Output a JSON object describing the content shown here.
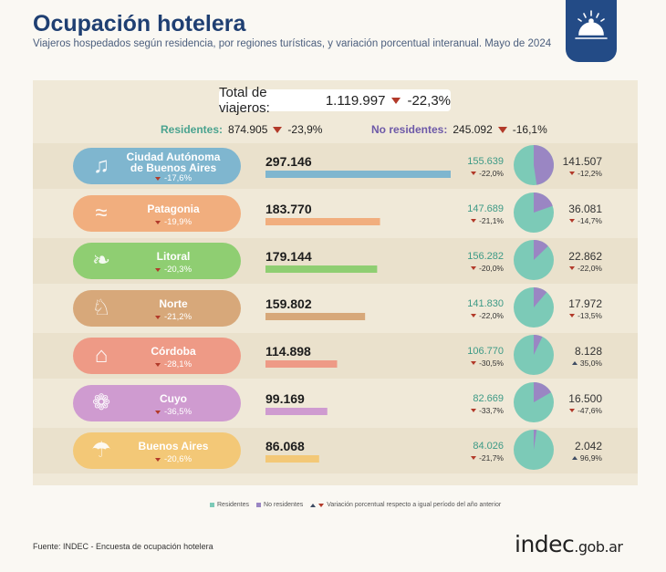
{
  "header": {
    "title": "Ocupación hotelera",
    "subtitle": "Viajeros hospedados según residencia, por regiones turísticas, y variación porcentual interanual. Mayo de 2024"
  },
  "summary": {
    "total_label": "Total de viajeros:",
    "total_value": "1.119.997",
    "total_var": "-22,3%",
    "res_label": "Residentes:",
    "res_value": "874.905",
    "res_var": "-23,9%",
    "nres_label": "No residentes:",
    "nres_value": "245.092",
    "nres_var": "-16,1%"
  },
  "colors": {
    "residentes": "#7ccab7",
    "no_residentes": "#9a86c3",
    "panel": "#f0e9d8",
    "down": "#b23a2a",
    "title": "#1f3f72"
  },
  "chart_data": {
    "type": "bar",
    "categories": [
      "Ciudad Autónoma de Buenos Aires",
      "Patagonia",
      "Litoral",
      "Norte",
      "Córdoba",
      "Cuyo",
      "Buenos Aires"
    ],
    "rows": [
      {
        "name_line1": "Ciudad Autónoma",
        "name_line2": "de Buenos Aires",
        "icon": "tango-icon",
        "color": "#7fb6cf",
        "band": "#eae1cc",
        "total": 297146,
        "total_label": "297.146",
        "total_var": "-17,6%",
        "res": 155639,
        "res_label": "155.639",
        "res_var": "-22,0%",
        "nres": 141507,
        "nres_label": "141.507",
        "nres_var": "-12,2%",
        "nres_up": false
      },
      {
        "name_line1": "Patagonia",
        "name_line2": "",
        "icon": "whale-icon",
        "color": "#f1ae7e",
        "band": "#f0e9d8",
        "total": 183770,
        "total_label": "183.770",
        "total_var": "-19,9%",
        "res": 147689,
        "res_label": "147.689",
        "res_var": "-21,1%",
        "nres": 36081,
        "nres_label": "36.081",
        "nres_var": "-14,7%",
        "nres_up": false
      },
      {
        "name_line1": "Litoral",
        "name_line2": "",
        "icon": "toucan-icon",
        "color": "#8fce72",
        "band": "#eae1cc",
        "total": 179144,
        "total_label": "179.144",
        "total_var": "-20,3%",
        "res": 156282,
        "res_label": "156.282",
        "res_var": "-20,0%",
        "nres": 22862,
        "nres_label": "22.862",
        "nres_var": "-22,0%",
        "nres_up": false
      },
      {
        "name_line1": "Norte",
        "name_line2": "",
        "icon": "llama-icon",
        "color": "#d7a87a",
        "band": "#f0e9d8",
        "total": 159802,
        "total_label": "159.802",
        "total_var": "-21,2%",
        "res": 141830,
        "res_label": "141.830",
        "res_var": "-22,0%",
        "nres": 17972,
        "nres_label": "17.972",
        "nres_var": "-13,5%",
        "nres_up": false
      },
      {
        "name_line1": "Córdoba",
        "name_line2": "",
        "icon": "cuckoo-clock-icon",
        "color": "#ee9a86",
        "band": "#eae1cc",
        "total": 114898,
        "total_label": "114.898",
        "total_var": "-28,1%",
        "res": 106770,
        "res_label": "106.770",
        "res_var": "-30,5%",
        "nres": 8128,
        "nres_label": "8.128",
        "nres_var": "35,0%",
        "nres_up": true
      },
      {
        "name_line1": "Cuyo",
        "name_line2": "",
        "icon": "grapes-icon",
        "color": "#cf9bd0",
        "band": "#f0e9d8",
        "total": 99169,
        "total_label": "99.169",
        "total_var": "-36,5%",
        "res": 82669,
        "res_label": "82.669",
        "res_var": "-33,7%",
        "nres": 16500,
        "nres_label": "16.500",
        "nres_var": "-47,6%",
        "nres_up": false
      },
      {
        "name_line1": "Buenos Aires",
        "name_line2": "",
        "icon": "beach-umbrella-icon",
        "color": "#f3c877",
        "band": "#eae1cc",
        "total": 86068,
        "total_label": "86.068",
        "total_var": "-20,6%",
        "res": 84026,
        "res_label": "84.026",
        "res_var": "-21,7%",
        "nres": 2042,
        "nres_label": "2.042",
        "nres_var": "96,9%",
        "nres_up": true
      }
    ]
  },
  "legend": {
    "residentes": "Residentes",
    "no_residentes": "No residentes",
    "variacion": "Variación porcentual respecto a igual período del año anterior"
  },
  "footer": {
    "source": "Fuente: INDEC - Encuesta de ocupación hotelera",
    "brand_main": "indec",
    "brand_domain": ".gob.ar"
  }
}
